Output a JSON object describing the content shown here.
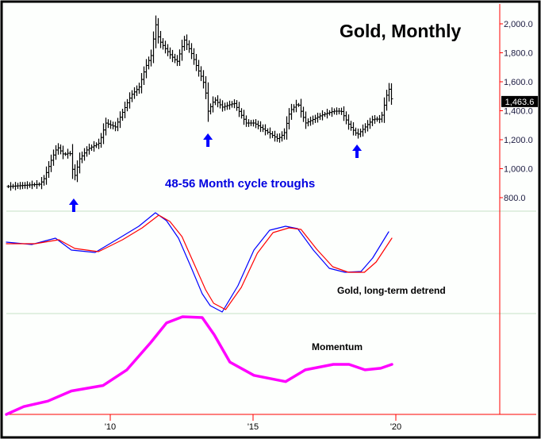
{
  "chart_data": [
    {
      "type": "ohlc-bar",
      "title": "Gold, Monthly",
      "annotation": "48-56 Month cycle troughs",
      "cycle_trough_years": [
        2008.72,
        2013.42,
        2018.64
      ],
      "x_ticks": [
        {
          "year": 2010,
          "label": "'10"
        },
        {
          "year": 2015,
          "label": "'15"
        },
        {
          "year": 2020,
          "label": "'20"
        }
      ],
      "y_ticks": [
        {
          "value": 800,
          "label": "800.0"
        },
        {
          "value": 1000,
          "label": "1,000.0"
        },
        {
          "value": 1200,
          "label": "1,200.0"
        },
        {
          "value": 1400,
          "label": "1,400.0"
        },
        {
          "value": 1600,
          "label": "1,600.0"
        },
        {
          "value": 1800,
          "label": "1,800.0"
        },
        {
          "value": 2000,
          "label": "2,000.0"
        }
      ],
      "last_price": 1463.6,
      "last_price_label": "1,463.6",
      "ylim": [
        700,
        2100
      ],
      "xlim": [
        2006.36,
        2023.4
      ],
      "close_trace": [
        [
          2006.42,
          877
        ],
        [
          2007.53,
          893
        ],
        [
          2007.67,
          931
        ],
        [
          2007.94,
          1068
        ],
        [
          2008.14,
          1151
        ],
        [
          2008.36,
          1096
        ],
        [
          2008.58,
          1112
        ],
        [
          2008.72,
          931
        ],
        [
          2008.92,
          1068
        ],
        [
          2009.19,
          1134
        ],
        [
          2009.61,
          1178
        ],
        [
          2009.83,
          1315
        ],
        [
          2010.17,
          1288
        ],
        [
          2010.44,
          1397
        ],
        [
          2010.72,
          1507
        ],
        [
          2011.0,
          1562
        ],
        [
          2011.22,
          1699
        ],
        [
          2011.42,
          1781
        ],
        [
          2011.58,
          2000
        ],
        [
          2011.69,
          1890
        ],
        [
          2011.89,
          1836
        ],
        [
          2012.11,
          1781
        ],
        [
          2012.33,
          1737
        ],
        [
          2012.58,
          1890
        ],
        [
          2012.81,
          1808
        ],
        [
          2013.03,
          1699
        ],
        [
          2013.22,
          1616
        ],
        [
          2013.31,
          1562
        ],
        [
          2013.42,
          1397
        ],
        [
          2013.64,
          1479
        ],
        [
          2013.92,
          1425
        ],
        [
          2014.33,
          1452
        ],
        [
          2014.75,
          1315
        ],
        [
          2015.03,
          1315
        ],
        [
          2015.44,
          1260
        ],
        [
          2015.86,
          1205
        ],
        [
          2016.08,
          1244
        ],
        [
          2016.28,
          1397
        ],
        [
          2016.56,
          1452
        ],
        [
          2016.83,
          1315
        ],
        [
          2017.11,
          1342
        ],
        [
          2017.39,
          1370
        ],
        [
          2017.81,
          1397
        ],
        [
          2018.08,
          1397
        ],
        [
          2018.36,
          1299
        ],
        [
          2018.64,
          1233
        ],
        [
          2018.92,
          1288
        ],
        [
          2019.19,
          1342
        ],
        [
          2019.47,
          1342
        ],
        [
          2019.67,
          1507
        ],
        [
          2019.75,
          1551
        ],
        [
          2019.86,
          1464
        ]
      ]
    },
    {
      "type": "line",
      "label": "Gold, long-term detrend",
      "ylim": [
        0,
        129
      ],
      "series": [
        {
          "name": "detrend-fast",
          "color": "#0000ff",
          "points": [
            [
              2006.36,
              90
            ],
            [
              2007.25,
              87
            ],
            [
              2008.08,
              95
            ],
            [
              2008.64,
              80
            ],
            [
              2009.47,
              77
            ],
            [
              2010.31,
              95
            ],
            [
              2011.0,
              110
            ],
            [
              2011.58,
              127
            ],
            [
              2011.97,
              117
            ],
            [
              2012.39,
              95
            ],
            [
              2012.81,
              60
            ],
            [
              2013.22,
              25
            ],
            [
              2013.5,
              10
            ],
            [
              2013.92,
              2
            ],
            [
              2014.47,
              35
            ],
            [
              2015.03,
              80
            ],
            [
              2015.58,
              105
            ],
            [
              2016.14,
              110
            ],
            [
              2016.56,
              107
            ],
            [
              2017.11,
              80
            ],
            [
              2017.67,
              57
            ],
            [
              2018.22,
              52
            ],
            [
              2018.78,
              53
            ],
            [
              2019.19,
              70
            ],
            [
              2019.75,
              103
            ]
          ]
        },
        {
          "name": "detrend-slow",
          "color": "#ff0000",
          "points": [
            [
              2006.36,
              88
            ],
            [
              2007.37,
              88
            ],
            [
              2008.2,
              93
            ],
            [
              2008.76,
              82
            ],
            [
              2009.59,
              78
            ],
            [
              2010.43,
              93
            ],
            [
              2011.12,
              108
            ],
            [
              2011.7,
              124
            ],
            [
              2012.09,
              116
            ],
            [
              2012.51,
              97
            ],
            [
              2012.93,
              63
            ],
            [
              2013.34,
              30
            ],
            [
              2013.62,
              13
            ],
            [
              2014.04,
              5
            ],
            [
              2014.59,
              33
            ],
            [
              2015.15,
              76
            ],
            [
              2015.7,
              102
            ],
            [
              2016.26,
              108
            ],
            [
              2016.68,
              106
            ],
            [
              2017.23,
              81
            ],
            [
              2017.79,
              59
            ],
            [
              2018.34,
              52
            ],
            [
              2018.9,
              52
            ],
            [
              2019.31,
              65
            ],
            [
              2019.86,
              95
            ]
          ]
        }
      ]
    },
    {
      "type": "line",
      "label": "Momentum",
      "ylim": [
        0,
        127
      ],
      "series": [
        {
          "name": "momentum",
          "color": "#ff00ff",
          "points": [
            [
              2006.36,
              0
            ],
            [
              2006.97,
              10
            ],
            [
              2007.81,
              17
            ],
            [
              2008.64,
              30
            ],
            [
              2009.75,
              37
            ],
            [
              2010.58,
              57
            ],
            [
              2011.42,
              92
            ],
            [
              2011.97,
              117
            ],
            [
              2012.53,
              125
            ],
            [
              2013.22,
              124
            ],
            [
              2013.64,
              102
            ],
            [
              2014.19,
              67
            ],
            [
              2015.03,
              50
            ],
            [
              2016.14,
              42
            ],
            [
              2016.83,
              57
            ],
            [
              2017.81,
              64
            ],
            [
              2018.36,
              64
            ],
            [
              2018.92,
              57
            ],
            [
              2019.47,
              59
            ],
            [
              2019.86,
              64
            ]
          ]
        }
      ]
    }
  ],
  "colors": {
    "axis": "#ff0000",
    "divider": "#c8e0c8",
    "arrow": "#0000ff",
    "annotation": "#0000e0"
  }
}
